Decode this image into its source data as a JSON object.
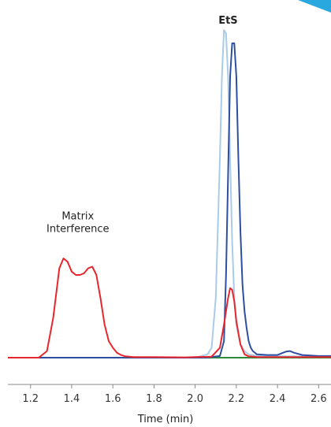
{
  "chart_data": {
    "type": "line",
    "title": "",
    "xlabel": "Time (min)",
    "ylabel": "",
    "xlim": [
      1.09,
      2.66
    ],
    "ylim": [
      0,
      100
    ],
    "x_ticks": [
      1.2,
      1.4,
      1.6,
      1.8,
      2.0,
      2.2,
      2.4,
      2.6
    ],
    "x_tick_labels": [
      "1.2",
      "1.4",
      "1.6",
      "1.8",
      "2.0",
      "2.2",
      "2.4",
      "2.6"
    ],
    "grid": false,
    "annotations": [
      {
        "text": "EtS",
        "x": 2.16,
        "y": 101,
        "bold": true
      },
      {
        "lines": [
          "Matrix",
          "Interference"
        ],
        "x": 1.43,
        "y": 38,
        "bold": false
      }
    ],
    "series": [
      {
        "color": "#e8262d",
        "x": [
          1.09,
          1.24,
          1.28,
          1.31,
          1.34,
          1.36,
          1.38,
          1.4,
          1.42,
          1.44,
          1.46,
          1.48,
          1.5,
          1.52,
          1.54,
          1.56,
          1.58,
          1.6,
          1.62,
          1.64,
          1.66,
          1.7,
          1.8,
          1.95,
          2.08,
          2.12,
          2.14,
          2.16,
          2.17,
          2.18,
          2.19,
          2.2,
          2.22,
          2.24,
          2.26,
          2.3,
          2.66
        ],
        "y": [
          0,
          0,
          2,
          12,
          27,
          30,
          29,
          26,
          25,
          25,
          25.5,
          27,
          27.5,
          25,
          18,
          10,
          5,
          3,
          1.5,
          0.8,
          0.4,
          0.2,
          0.2,
          0.1,
          0.3,
          3,
          10,
          18,
          21,
          20.5,
          17,
          11,
          4,
          1,
          0.4,
          0.2,
          0.2
        ]
      },
      {
        "color": "#a9cbe8",
        "x": [
          1.09,
          2.0,
          2.06,
          2.08,
          2.1,
          2.12,
          2.13,
          2.14,
          2.15,
          2.16,
          2.17,
          2.18,
          2.19,
          2.2,
          2.22,
          2.24,
          2.26,
          2.3,
          2.66
        ],
        "y": [
          0,
          0,
          1,
          3,
          18,
          60,
          85,
          99,
          98,
          85,
          60,
          35,
          18,
          10,
          4,
          2,
          1,
          0.5,
          0.3
        ]
      },
      {
        "color": "#2e4fa0",
        "x": [
          1.09,
          2.05,
          2.12,
          2.14,
          2.15,
          2.16,
          2.17,
          2.18,
          2.19,
          2.2,
          2.21,
          2.22,
          2.23,
          2.24,
          2.25,
          2.26,
          2.27,
          2.28,
          2.3,
          2.35,
          2.4,
          2.44,
          2.46,
          2.48,
          2.52,
          2.6,
          2.66
        ],
        "y": [
          0,
          0,
          0.5,
          5,
          25,
          55,
          85,
          95,
          95,
          85,
          60,
          38,
          22,
          14,
          9,
          5,
          3,
          2,
          1,
          0.8,
          0.8,
          1.8,
          2,
          1.5,
          0.8,
          0.5,
          0.5
        ]
      },
      {
        "color": "#2e8b3a",
        "x": [
          1.09,
          2.66
        ],
        "y": [
          0,
          0
        ]
      }
    ]
  },
  "decor": {
    "corner_color": "#29a8e0"
  }
}
